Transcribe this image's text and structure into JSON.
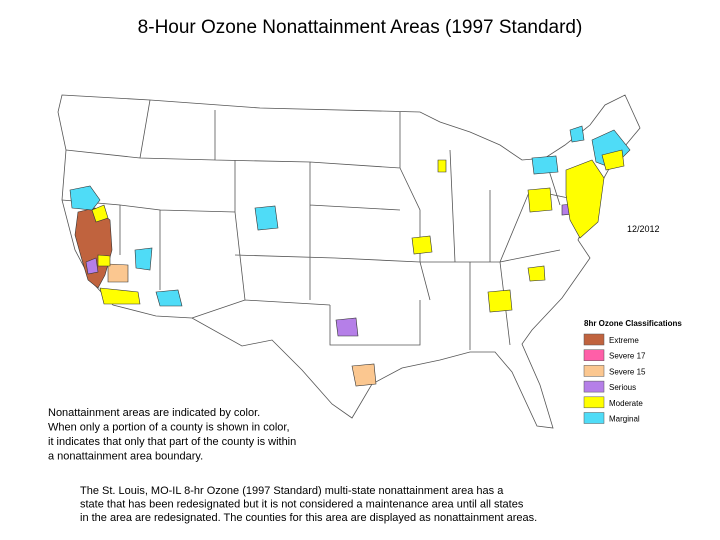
{
  "header": {
    "title": "8-Hour Ozone Nonattainment Areas (1997 Standard)",
    "date": "12/2012"
  },
  "legend": {
    "title": "8hr Ozone Classifications",
    "items": [
      {
        "label": "Extreme",
        "color": "#c0633e"
      },
      {
        "label": "Severe 17",
        "color": "#ff5fa8"
      },
      {
        "label": "Severe 15",
        "color": "#fbc790"
      },
      {
        "label": "Serious",
        "color": "#b57fe8"
      },
      {
        "label": "Moderate",
        "color": "#ffff00"
      },
      {
        "label": "Marginal",
        "color": "#4fdcf7"
      }
    ]
  },
  "notes": {
    "color_note": [
      "Nonattainment areas are indicated by color.",
      "When only a portion of a county is shown in color,",
      "it indicates that only that part of the county is within",
      "a nonattainment area boundary."
    ],
    "st_louis_note": [
      "The St. Louis, MO-IL 8-hr Ozone (1997 Standard) multi-state nonattainment area has a",
      "state that has been redesignated but it is not considered a maintenance area until all states",
      "in the area are redesignated. The counties for this area are displayed as nonattainment areas."
    ]
  }
}
